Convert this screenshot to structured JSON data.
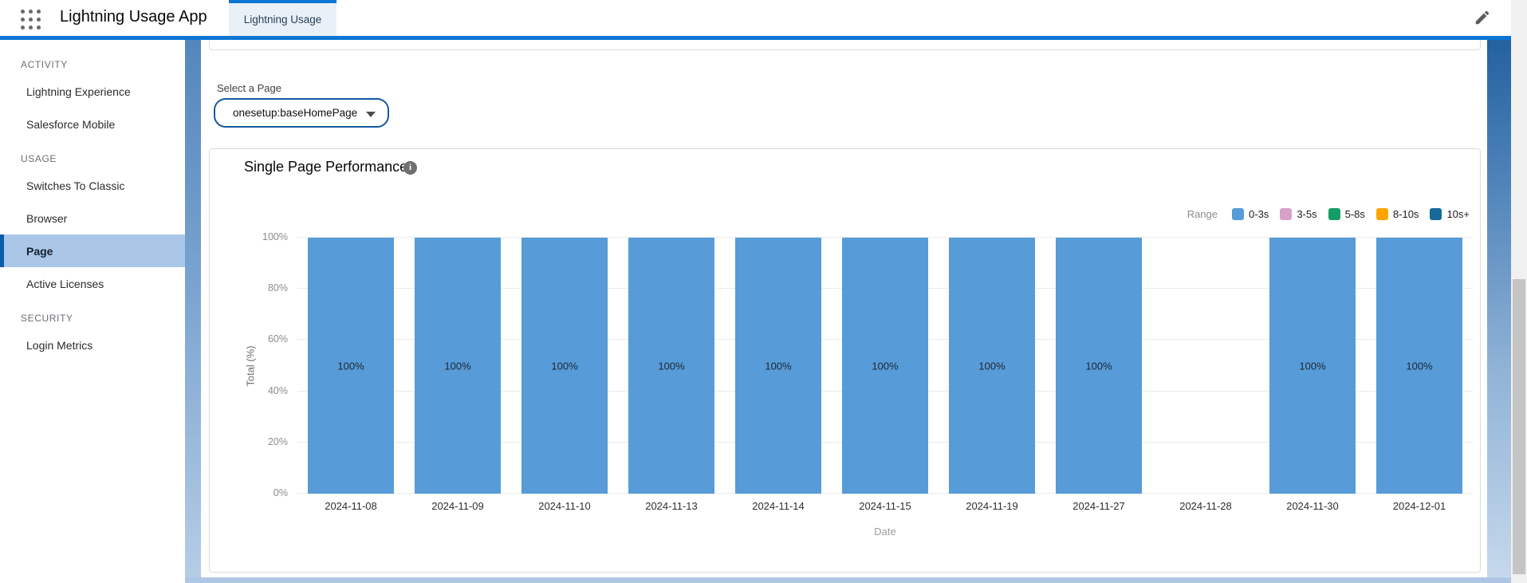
{
  "header": {
    "app_title": "Lightning Usage App",
    "tab_label": "Lightning Usage",
    "icons": {
      "app_launcher": "app-launcher-grid-icon",
      "edit": "pencil-icon"
    }
  },
  "colors": {
    "accent_blue": "#0b76d4",
    "selected_nav_bg": "#aac7e8",
    "selected_nav_border": "#0b5cab",
    "dropdown_border": "#15599f",
    "bar_blue": "#579BD8"
  },
  "sidebar": {
    "sections": [
      {
        "title": "ACTIVITY",
        "items": [
          {
            "label": "Lightning Experience",
            "selected": false
          },
          {
            "label": "Salesforce Mobile",
            "selected": false
          }
        ]
      },
      {
        "title": "USAGE",
        "items": [
          {
            "label": "Switches To Classic",
            "selected": false
          },
          {
            "label": "Browser",
            "selected": false
          },
          {
            "label": "Page",
            "selected": true
          },
          {
            "label": "Active Licenses",
            "selected": false
          }
        ]
      },
      {
        "title": "SECURITY",
        "items": [
          {
            "label": "Login Metrics",
            "selected": false
          }
        ]
      }
    ]
  },
  "page_selector": {
    "label": "Select a Page",
    "value": "onesetup:baseHomePage",
    "icon": "caret-down-icon"
  },
  "card": {
    "title": "Single Page Performance",
    "info_icon": "info-circle-icon"
  },
  "chart_data": {
    "type": "bar",
    "stacked": true,
    "title": "Single Page Performance",
    "categories": [
      "2024-11-08",
      "2024-11-09",
      "2024-11-10",
      "2024-11-13",
      "2024-11-14",
      "2024-11-15",
      "2024-11-19",
      "2024-11-27",
      "2024-11-28",
      "2024-11-30",
      "2024-12-01"
    ],
    "series": [
      {
        "name": "0-3s",
        "color": "#579BD8",
        "values": [
          100,
          100,
          100,
          100,
          100,
          100,
          100,
          100,
          null,
          100,
          100
        ]
      },
      {
        "name": "3-5s",
        "color": "#D6A0C9",
        "values": [
          0,
          0,
          0,
          0,
          0,
          0,
          0,
          0,
          null,
          0,
          0
        ]
      },
      {
        "name": "5-8s",
        "color": "#149E67",
        "values": [
          0,
          0,
          0,
          0,
          0,
          0,
          0,
          0,
          null,
          0,
          0
        ]
      },
      {
        "name": "8-10s",
        "color": "#FFA400",
        "values": [
          0,
          0,
          0,
          0,
          0,
          0,
          0,
          0,
          null,
          0,
          0
        ]
      },
      {
        "name": "10s+",
        "color": "#17699B",
        "values": [
          0,
          0,
          0,
          0,
          0,
          0,
          0,
          0,
          null,
          0,
          0
        ]
      }
    ],
    "bar_labels": [
      "100%",
      "100%",
      "100%",
      "100%",
      "100%",
      "100%",
      "100%",
      "100%",
      "",
      "100%",
      "100%"
    ],
    "xlabel": "Date",
    "ylabel": "Total (%)",
    "ylim": [
      0,
      100
    ],
    "yticks": [
      "0%",
      "20%",
      "40%",
      "60%",
      "80%",
      "100%"
    ],
    "grid": "horizontal",
    "legend_title": "Range",
    "legend_position": "top-right"
  }
}
